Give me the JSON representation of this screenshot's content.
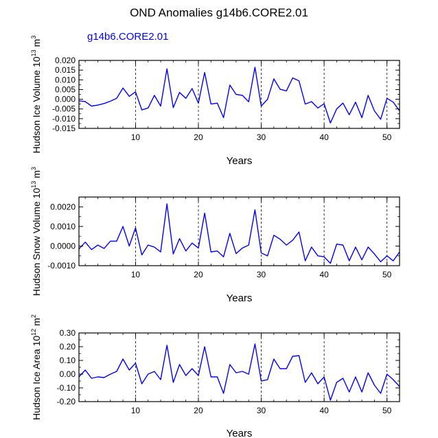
{
  "title": "OND Anomalies g14b6.CORE2.01",
  "series_label": "g14b6.CORE2.01",
  "colors": {
    "line": "#0000ff",
    "axis": "#000000",
    "series_label": "#0000ff"
  },
  "chart_data": [
    {
      "type": "line",
      "title": "",
      "xlabel": "Years",
      "ylabel": "Hudson Ice Volume",
      "ylabel_unit_base": "10",
      "ylabel_unit_exp": "13",
      "ylabel_unit_m": "m",
      "ylabel_unit_mexp": "3",
      "xlim": [
        1,
        52
      ],
      "ylim": [
        -0.015,
        0.02
      ],
      "x_ticks": [
        "10",
        "20",
        "30",
        "40",
        "50"
      ],
      "y_ticks": [
        "0.020",
        "0.015",
        "0.010",
        "0.005",
        "0.000",
        "-0.005",
        "-0.010",
        "-0.015"
      ],
      "y_tick_values": [
        0.02,
        0.015,
        0.01,
        0.005,
        0.0,
        -0.005,
        -0.01,
        -0.015
      ],
      "vlines": [
        10,
        20,
        30,
        40,
        50
      ],
      "x": [
        1,
        2,
        3,
        4,
        5,
        6,
        7,
        8,
        9,
        10,
        11,
        12,
        13,
        14,
        15,
        16,
        17,
        18,
        19,
        20,
        21,
        22,
        23,
        24,
        25,
        26,
        27,
        28,
        29,
        30,
        31,
        32,
        33,
        34,
        35,
        36,
        37,
        38,
        39,
        40,
        41,
        42,
        43,
        44,
        45,
        46,
        47,
        48,
        49,
        50,
        51,
        52
      ],
      "series": [
        {
          "name": "g14b6.CORE2.01",
          "values": [
            -0.0008,
            -0.0012,
            -0.0035,
            -0.003,
            -0.0022,
            -0.001,
            0.0005,
            0.0058,
            0.0015,
            0.0038,
            -0.0055,
            -0.0045,
            0.002,
            -0.0035,
            0.0157,
            -0.0043,
            0.0035,
            0.0005,
            0.0055,
            -0.002,
            0.0138,
            -0.0025,
            -0.002,
            -0.0095,
            0.0073,
            0.0025,
            0.002,
            -0.0013,
            0.0165,
            -0.0035,
            0.0,
            0.0105,
            0.0052,
            0.0043,
            0.011,
            0.0095,
            -0.0025,
            -0.0012,
            -0.0045,
            -0.0023,
            -0.0122,
            -0.005,
            -0.002,
            -0.008,
            -0.0015,
            -0.0095,
            0.002,
            -0.006,
            -0.0103,
            0.0005,
            -0.0015,
            -0.006
          ]
        }
      ]
    },
    {
      "type": "line",
      "title": "",
      "xlabel": "Years",
      "ylabel": "Hudson Snow Volume",
      "ylabel_unit_base": "10",
      "ylabel_unit_exp": "13",
      "ylabel_unit_m": "m",
      "ylabel_unit_mexp": "3",
      "xlim": [
        1,
        52
      ],
      "ylim": [
        -0.001,
        0.0025
      ],
      "x_ticks": [
        "10",
        "20",
        "30",
        "40",
        "50"
      ],
      "y_ticks": [
        "0.0020",
        "0.0010",
        "0.0000",
        "-0.0010"
      ],
      "y_tick_values": [
        0.002,
        0.001,
        0.0,
        -0.001
      ],
      "vlines": [
        10,
        20,
        30,
        40,
        50
      ],
      "x": [
        1,
        2,
        3,
        4,
        5,
        6,
        7,
        8,
        9,
        10,
        11,
        12,
        13,
        14,
        15,
        16,
        17,
        18,
        19,
        20,
        21,
        22,
        23,
        24,
        25,
        26,
        27,
        28,
        29,
        30,
        31,
        32,
        33,
        34,
        35,
        36,
        37,
        38,
        39,
        40,
        41,
        42,
        43,
        44,
        45,
        46,
        47,
        48,
        49,
        50,
        51,
        52
      ],
      "series": [
        {
          "name": "g14b6.CORE2.01",
          "values": [
            -0.00015,
            0.0002,
            -0.00018,
            5e-05,
            -0.00012,
            0.00025,
            0.00025,
            0.001,
            0.0,
            0.00093,
            -0.00045,
            5e-05,
            -5e-05,
            -0.0003,
            0.00215,
            -0.0004,
            0.00038,
            -0.00025,
            0.00015,
            -0.0001,
            0.00168,
            -0.0003,
            -0.00025,
            -0.00055,
            0.00065,
            -0.00038,
            -0.0001,
            5e-05,
            0.00185,
            -0.00035,
            -0.0005,
            0.00055,
            0.00035,
            5e-05,
            0.0003,
            0.00072,
            -0.00075,
            -5e-05,
            -0.0005,
            -0.00055,
            -0.00088,
            0.0001,
            5e-05,
            -0.00075,
            -5e-05,
            -0.0007,
            -5e-05,
            -0.0004,
            -0.0008,
            -0.0005,
            -0.00075,
            -0.0003
          ]
        }
      ]
    },
    {
      "type": "line",
      "title": "",
      "xlabel": "Years",
      "ylabel": "Hudson Ice Area",
      "ylabel_unit_base": "10",
      "ylabel_unit_exp": "12",
      "ylabel_unit_m": "m",
      "ylabel_unit_mexp": "2",
      "xlim": [
        1,
        52
      ],
      "ylim": [
        -0.2,
        0.3
      ],
      "x_ticks": [
        "10",
        "20",
        "30",
        "40",
        "50"
      ],
      "y_ticks": [
        "0.30",
        "0.20",
        "0.10",
        "0.00",
        "-0.10",
        "-0.20"
      ],
      "y_tick_values": [
        0.3,
        0.2,
        0.1,
        0.0,
        -0.1,
        -0.2
      ],
      "vlines": [
        10,
        20,
        30,
        40,
        50
      ],
      "x": [
        1,
        2,
        3,
        4,
        5,
        6,
        7,
        8,
        9,
        10,
        11,
        12,
        13,
        14,
        15,
        16,
        17,
        18,
        19,
        20,
        21,
        22,
        23,
        24,
        25,
        26,
        27,
        28,
        29,
        30,
        31,
        32,
        33,
        34,
        35,
        36,
        37,
        38,
        39,
        40,
        41,
        42,
        43,
        44,
        45,
        46,
        47,
        48,
        49,
        50,
        51,
        52
      ],
      "series": [
        {
          "name": "g14b6.CORE2.01",
          "values": [
            -0.02,
            0.03,
            -0.03,
            -0.02,
            -0.025,
            0.0,
            0.02,
            0.11,
            0.03,
            0.08,
            -0.07,
            0.0,
            0.02,
            -0.04,
            0.21,
            -0.06,
            0.07,
            -0.01,
            0.04,
            -0.01,
            0.2,
            -0.02,
            -0.02,
            -0.14,
            0.07,
            0.01,
            0.02,
            0.0,
            0.22,
            -0.05,
            -0.04,
            0.11,
            0.04,
            0.04,
            0.13,
            0.135,
            -0.06,
            0.01,
            -0.07,
            -0.02,
            -0.19,
            -0.06,
            -0.03,
            -0.13,
            -0.02,
            -0.13,
            0.01,
            -0.08,
            -0.14,
            0.0,
            -0.04,
            -0.09
          ]
        }
      ]
    }
  ]
}
